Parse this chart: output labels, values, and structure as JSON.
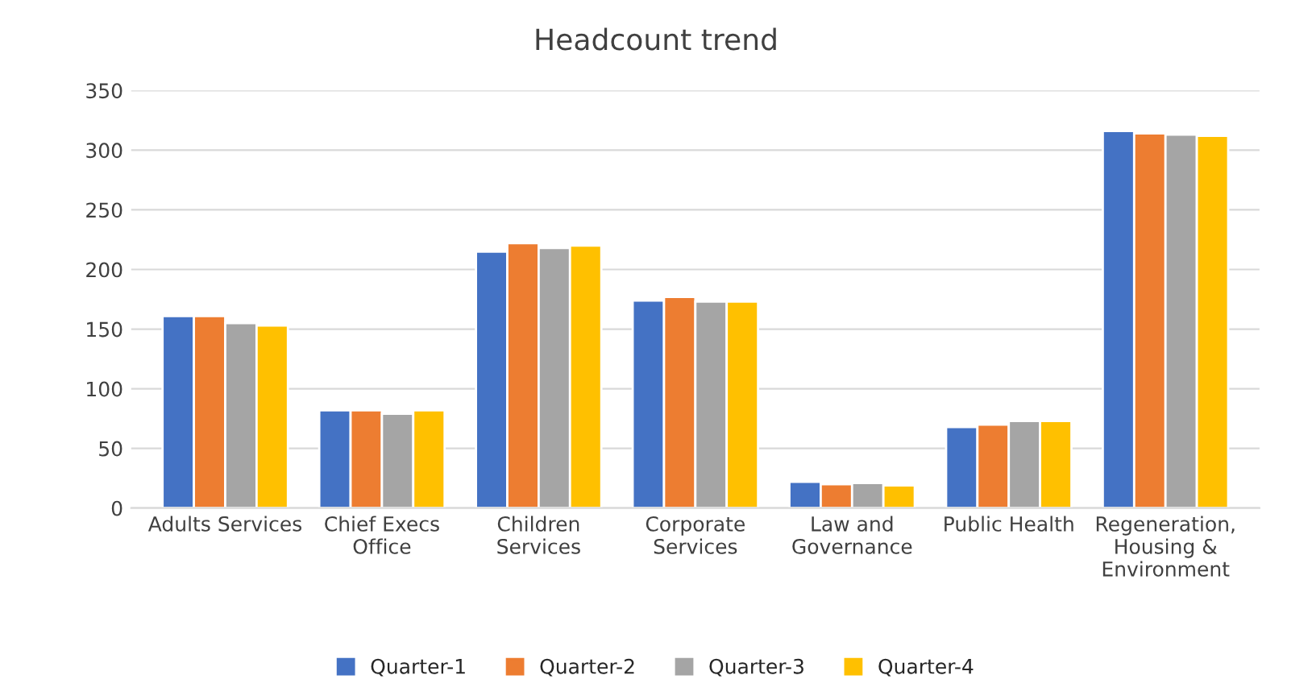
{
  "chart_data": {
    "type": "bar",
    "title": "Headcount trend",
    "categories": [
      "Adults Services",
      "Chief Execs\nOffice",
      "Children\nServices",
      "Corporate\nServices",
      "Law and\nGovernance",
      "Public Health",
      "Regeneration,\nHousing &\nEnvironment"
    ],
    "series": [
      {
        "name": "Quarter-1",
        "color": "#4472c4",
        "values": [
          161,
          82,
          215,
          174,
          22,
          68,
          316
        ]
      },
      {
        "name": "Quarter-2",
        "color": "#ed7d31",
        "values": [
          161,
          82,
          222,
          177,
          20,
          70,
          314
        ]
      },
      {
        "name": "Quarter-3",
        "color": "#a5a5a5",
        "values": [
          155,
          79,
          218,
          173,
          21,
          73,
          313
        ]
      },
      {
        "name": "Quarter-4",
        "color": "#ffc000",
        "values": [
          153,
          82,
          220,
          173,
          19,
          73,
          312
        ]
      }
    ],
    "ylim": [
      0,
      350
    ],
    "yticks": [
      0,
      50,
      100,
      150,
      200,
      250,
      300,
      350
    ],
    "grid": "y",
    "legend": "bottom"
  }
}
